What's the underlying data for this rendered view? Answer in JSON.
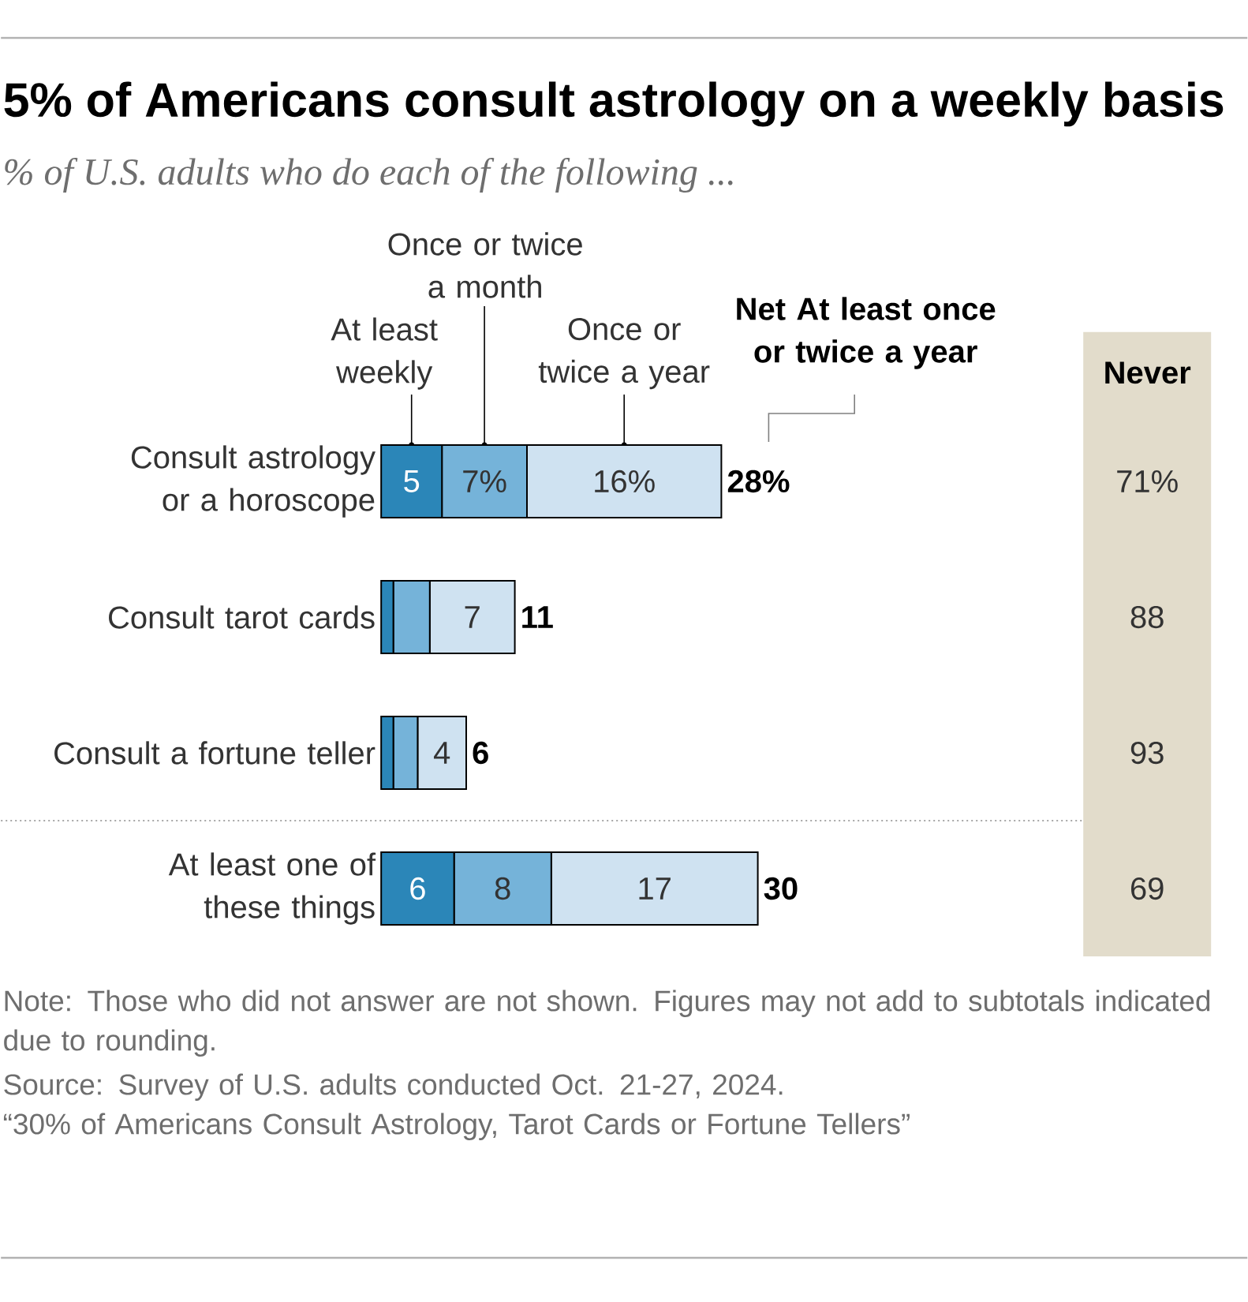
{
  "chart_data": [
    {
      "type": "bar",
      "orientation": "horizontal",
      "stacked": true,
      "title": "5% of Americans consult astrology on a weekly basis",
      "subtitle": "% of U.S. adults who do each of the following ...",
      "categories": [
        "Consult astrology or a horoscope",
        "Consult tarot cards",
        "Consult a fortune teller",
        "At least one of these things"
      ],
      "series": [
        {
          "name": "At least weekly",
          "color": "#2b86b8",
          "values": [
            5,
            1,
            1,
            6
          ],
          "value_labels": [
            "5",
            null,
            null,
            "6"
          ]
        },
        {
          "name": "Once or twice a month",
          "color": "#75b3d9",
          "values": [
            7,
            3,
            2,
            8
          ],
          "value_labels": [
            "7%",
            null,
            null,
            "8"
          ]
        },
        {
          "name": "Once or twice a year",
          "color": "#cfe2f1",
          "values": [
            16,
            7,
            4,
            17
          ],
          "value_labels": [
            "16%",
            "7",
            "4",
            "17"
          ]
        }
      ],
      "totals": [
        "28%",
        "11",
        "6",
        "30"
      ],
      "legend_title": "Net At least once or twice a year",
      "annotations": [
        "Note: Those who did not answer are not shown. Figures may not add to subtotals indicated due to rounding.",
        "Source: Survey of U.S. adults conducted Oct. 21-27, 2024.",
        "“30% of Americans Consult Astrology, Tarot Cards or Fortune Tellers”"
      ]
    },
    {
      "type": "other",
      "title": "Never",
      "color": "#e2dccb",
      "value_labels": [
        "71%",
        "88",
        "93",
        "69"
      ]
    }
  ]
}
